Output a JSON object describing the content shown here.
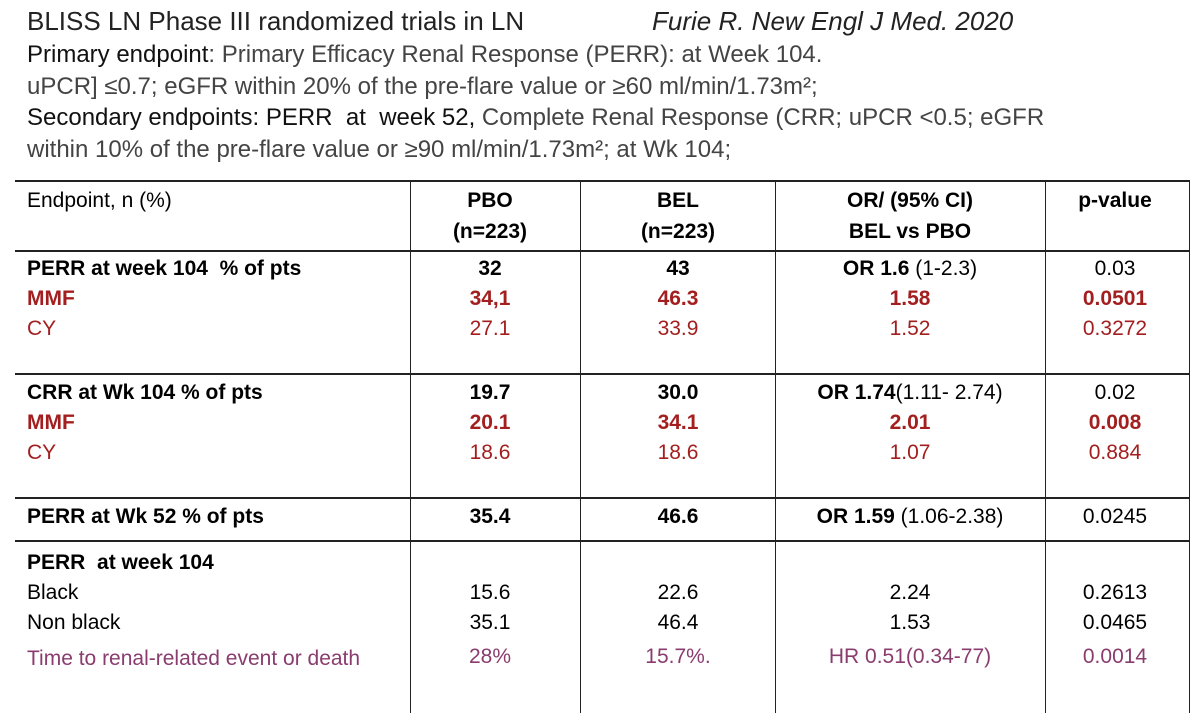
{
  "header": {
    "title": "BLISS LN Phase III randomized trials in LN",
    "citation": "Furie R. New Engl J Med. 2020",
    "primary_label": "Primary endpoint",
    "primary_text": ": Primary Efficacy Renal Response (PERR): at Week 104.",
    "primary_text_2": "uPCR] ≤0.7; eGFR within 20% of the pre-flare value or ≥60 ml/min/1.73m²;",
    "secondary_label": "Secondary endpoints: PERR  at  week 52,",
    "secondary_text": " Complete Renal Response (CRR; uPCR <0.5; eGFR",
    "secondary_text_2": "within 10% of the pre-flare value or ≥90 ml/min/1.73m²; at Wk 104;"
  },
  "table": {
    "header": [
      [
        "Endpoint, n (%)"
      ],
      [
        "PBO",
        "(n=223)"
      ],
      [
        "BEL",
        "(n=223)"
      ],
      [
        "OR/ (95% CI)",
        "BEL vs PBO"
      ],
      [
        "p-value"
      ]
    ],
    "rows": [
      [
        "PERR at week 104  % of pts",
        "32",
        "43",
        {
          "or": "OR 1.6",
          "ci": " (1-2.3)"
        },
        "0.03"
      ],
      [
        "MMF",
        "34,1",
        "46.3",
        "1.58",
        "0.0501"
      ],
      [
        "CY",
        "27.1",
        "33.9",
        "1.52",
        "0.3272"
      ],
      [
        "CRR at Wk 104 % of pts",
        "19.7",
        "30.0",
        {
          "or": "OR 1.74",
          "ci": "(1.11- 2.74)"
        },
        "0.02"
      ],
      [
        "MMF",
        "20.1",
        "34.1",
        "2.01",
        "0.008"
      ],
      [
        "CY",
        "18.6",
        "18.6",
        "1.07",
        "0.884"
      ],
      [
        "PERR at Wk 52 % of pts",
        "35.4",
        "46.6",
        {
          "or": "OR 1.59",
          "ci": " (1.06-2.38)"
        },
        "0.0245"
      ],
      [
        "PERR  at week 104"
      ],
      [
        "Black",
        "15.6",
        "22.6",
        "2.24",
        "0.2613"
      ],
      [
        "Non black",
        "35.1",
        "46.4",
        "1.53",
        "0.0465"
      ],
      [
        "Time to renal-related event or death",
        "28%",
        "15.7%.",
        "HR 0.51(0.34-77)",
        "0.0014"
      ]
    ]
  }
}
